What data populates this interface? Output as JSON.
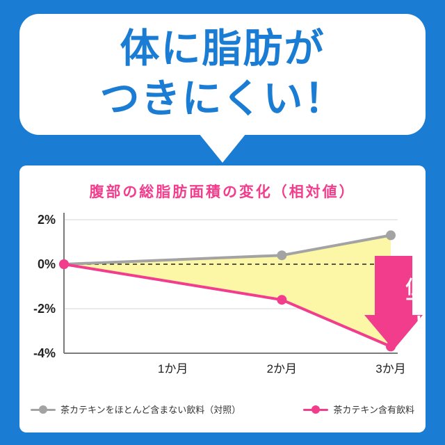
{
  "bubble": {
    "line1": "体に脂肪が",
    "line2": "つきにくい！"
  },
  "chart_data": {
    "type": "line",
    "title": "腹部の総脂肪面積の変化（相対値）",
    "x_unit": "month",
    "x_tick_labels": [
      "1か月",
      "2か月",
      "3か月"
    ],
    "y_tick_values": [
      2,
      0,
      -2,
      -4
    ],
    "y_tick_labels": [
      "2%",
      "0%",
      "-2%",
      "-4%"
    ],
    "ylim": [
      -4,
      2
    ],
    "zero_line": "dashed",
    "grid": "horizontal-light",
    "fill_between_color": "#fcf7a6",
    "series": [
      {
        "name": "茶カテキンをほとんど含まない飲料（対照）",
        "color": "#a3a3a3",
        "x": [
          0,
          2,
          3
        ],
        "values": [
          0,
          0.4,
          1.3
        ]
      },
      {
        "name": "茶カテキン含有飲料",
        "color": "#f23d8d",
        "x": [
          0,
          2,
          3
        ],
        "values": [
          0,
          -1.6,
          -3.7
        ]
      }
    ],
    "annotation": {
      "label": "低下！",
      "color": "#f23d8d"
    },
    "legend_position": "bottom"
  },
  "legend": {
    "items": [
      {
        "label": "茶カテキンをほとんど含まない飲料（対照）",
        "color": "#a3a3a3"
      },
      {
        "label": "茶カテキン含有飲料",
        "color": "#f23d8d"
      }
    ]
  },
  "colors": {
    "background_blue": "#1b7cd4",
    "headline_blue": "#1b7cd4",
    "accent_pink": "#f23d8d",
    "control_gray": "#a3a3a3",
    "fill_yellow": "#fcf7a6"
  }
}
